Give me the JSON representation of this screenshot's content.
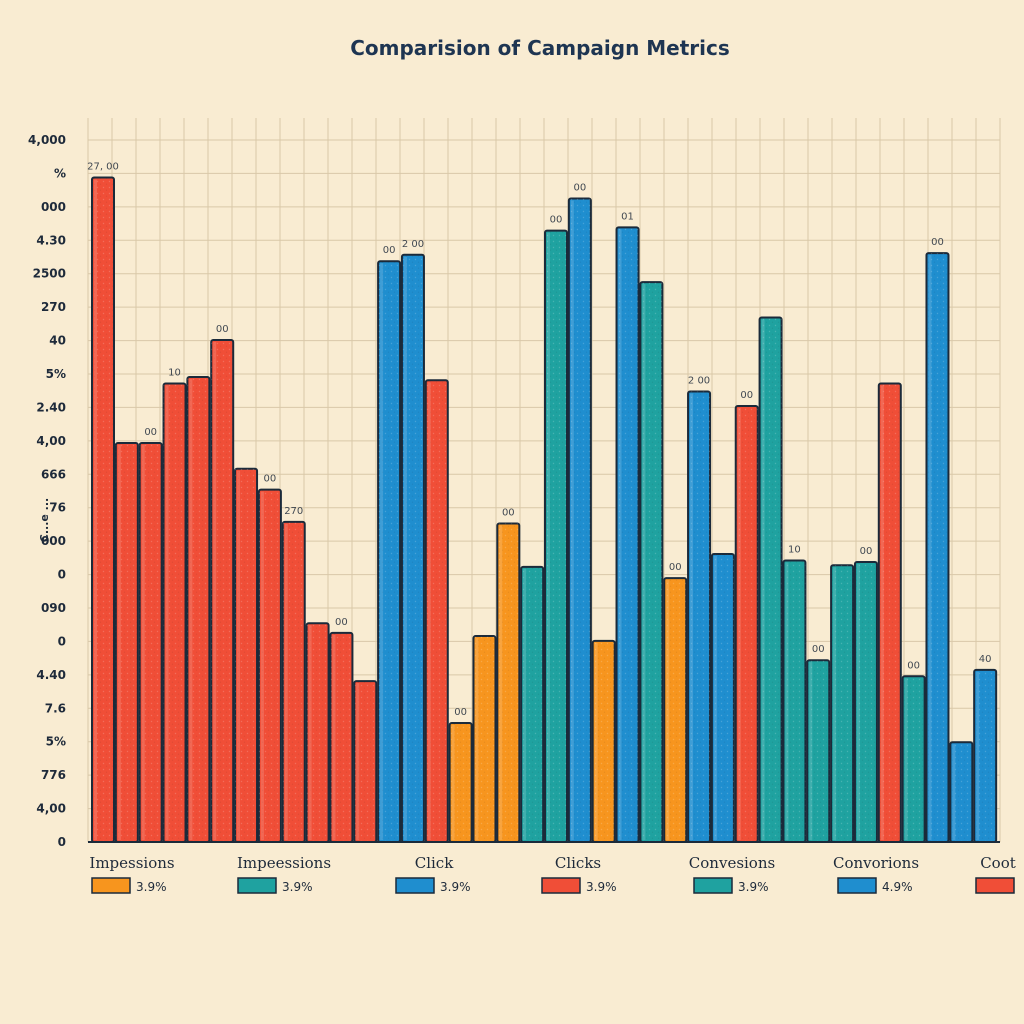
{
  "chart_data": {
    "type": "bar",
    "title": "Comparision of Campaign Metrics",
    "xlabel": "",
    "ylabel": "C...e ...",
    "y_tick_labels": [
      "0",
      "4,00",
      "776",
      "5%",
      "7.6",
      "4.40",
      "0",
      "090",
      "0",
      "000",
      "76",
      "666",
      "4,00",
      "2.40",
      "5%",
      "40",
      "270",
      "2500",
      "4.30",
      "000",
      "%",
      "4,000"
    ],
    "ylim": [
      0,
      4500
    ],
    "grid": true,
    "categories": [
      "Impessions",
      "Impeessions",
      "Click",
      "Clicks",
      "Convesions",
      "Convorions",
      "Coot"
    ],
    "colors": {
      "red": "#f04e37",
      "orange": "#f7951e",
      "teal": "#1fa2a0",
      "blue": "#1f8ecf",
      "outline": "#1b2a3a",
      "grid": "#d9c8a8",
      "background": "#f9ecd2"
    },
    "legend": [
      {
        "name": "3.9%",
        "color": "#f7951e"
      },
      {
        "name": "3.9%",
        "color": "#1fa2a0"
      },
      {
        "name": "3.9%",
        "color": "#1f8ecf"
      },
      {
        "name": "3.9%",
        "color": "#f04e37"
      },
      {
        "name": "3.9%",
        "color": "#1fa2a0"
      },
      {
        "name": "4.9%",
        "color": "#1f8ecf"
      },
      {
        "name": "",
        "color": "#f04e37"
      }
    ],
    "bar_labels": [
      "27, 00",
      "00",
      "10",
      "00",
      "00",
      "270",
      "00",
      "00",
      "2 00",
      "00",
      "00",
      "00",
      "00",
      "01",
      "00",
      "2 00",
      "00",
      "10",
      "00",
      "00",
      "00",
      "00",
      "40"
    ],
    "bars": [
      {
        "value": 4130,
        "color": "red"
      },
      {
        "value": 2480,
        "color": "red"
      },
      {
        "value": 2480,
        "color": "red"
      },
      {
        "value": 2850,
        "color": "red"
      },
      {
        "value": 2890,
        "color": "red"
      },
      {
        "value": 3120,
        "color": "red"
      },
      {
        "value": 2320,
        "color": "red"
      },
      {
        "value": 2190,
        "color": "red"
      },
      {
        "value": 1990,
        "color": "red"
      },
      {
        "value": 1360,
        "color": "red"
      },
      {
        "value": 1300,
        "color": "red"
      },
      {
        "value": 1000,
        "color": "red"
      },
      {
        "value": 3610,
        "color": "blue"
      },
      {
        "value": 3650,
        "color": "blue"
      },
      {
        "value": 2870,
        "color": "red"
      },
      {
        "value": 740,
        "color": "orange"
      },
      {
        "value": 1280,
        "color": "orange"
      },
      {
        "value": 1980,
        "color": "orange"
      },
      {
        "value": 1710,
        "color": "teal"
      },
      {
        "value": 3800,
        "color": "teal"
      },
      {
        "value": 4000,
        "color": "blue"
      },
      {
        "value": 1250,
        "color": "orange"
      },
      {
        "value": 3820,
        "color": "blue"
      },
      {
        "value": 3480,
        "color": "teal"
      },
      {
        "value": 1640,
        "color": "orange"
      },
      {
        "value": 2800,
        "color": "blue"
      },
      {
        "value": 1790,
        "color": "blue"
      },
      {
        "value": 2710,
        "color": "red"
      },
      {
        "value": 3260,
        "color": "teal"
      },
      {
        "value": 1750,
        "color": "teal"
      },
      {
        "value": 1130,
        "color": "teal"
      },
      {
        "value": 1720,
        "color": "teal"
      },
      {
        "value": 1740,
        "color": "teal"
      },
      {
        "value": 2850,
        "color": "red"
      },
      {
        "value": 1030,
        "color": "teal"
      },
      {
        "value": 3660,
        "color": "blue"
      },
      {
        "value": 620,
        "color": "blue"
      },
      {
        "value": 1070,
        "color": "blue"
      }
    ]
  }
}
